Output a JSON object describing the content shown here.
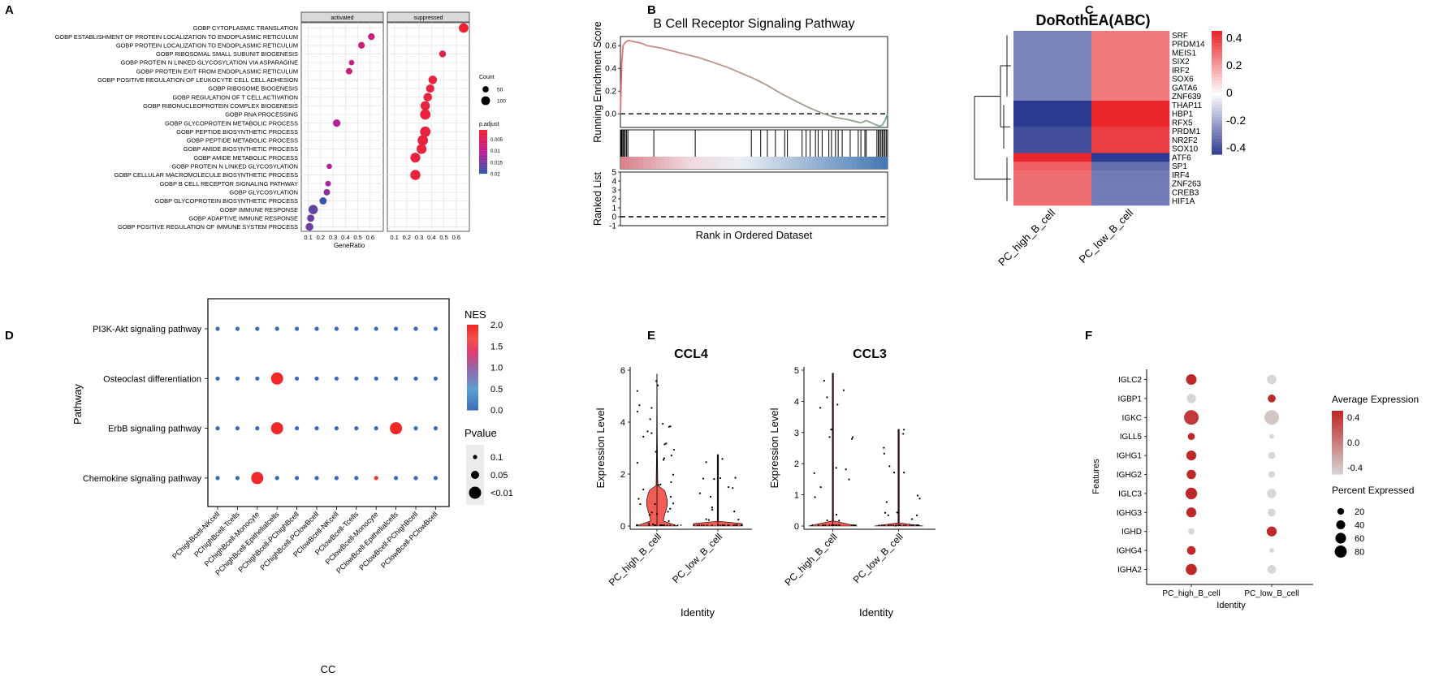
{
  "panels": {
    "A": "A",
    "B": "B",
    "C": "C",
    "D": "D",
    "E": "E",
    "F": "F"
  },
  "chart_data": [
    {
      "panel": "A",
      "type": "scatter",
      "facets": [
        "activated",
        "suppressed"
      ],
      "xlabel": "GeneRatio",
      "ylabel": "",
      "xticks": [
        0.1,
        0.2,
        0.3,
        0.4,
        0.5,
        0.6
      ],
      "xlim": [
        0.07,
        0.68
      ],
      "terms": [
        "GOBP CYTOPLASMIC TRANSLATION",
        "GOBP ESTABLISHMENT OF PROTEIN LOCALIZATION TO ENDOPLASMIC RETICULUM",
        "GOBP PROTEIN LOCALIZATION TO ENDOPLASMIC RETICULUM",
        "GOBP RIBOSOMAL SMALL SUBUNIT BIOGENESIS",
        "GOBP PROTEIN N LINKED GLYCOSYLATION VIA ASPARAGINE",
        "GOBP PROTEIN EXIT FROM ENDOPLASMIC RETICULUM",
        "GOBP POSITIVE REGULATION OF LEUKOCYTE CELL CELL ADHESION",
        "GOBP RIBOSOME BIOGENESIS",
        "GOBP REGULATION OF T CELL ACTIVATION",
        "GOBP RIBONUCLEOPROTEIN COMPLEX BIOGENESIS",
        "GOBP RNA PROCESSING",
        "GOBP GLYCOPROTEIN METABOLIC PROCESS",
        "GOBP PEPTIDE BIOSYNTHETIC PROCESS",
        "GOBP PEPTIDE METABOLIC PROCESS",
        "GOBP AMIDE BIOSYNTHETIC PROCESS",
        "GOBP AMIDE METABOLIC PROCESS",
        "GOBP PROTEIN N LINKED GLYCOSYLATION",
        "GOBP CELLULAR MACROMOLECULE BIOSYNTHETIC PROCESS",
        "GOBP B CELL RECEPTOR SIGNALING PATHWAY",
        "GOBP GLYCOSYLATION",
        "GOBP GLYCOPROTEIN BIOSYNTHETIC PROCESS",
        "GOBP IMMUNE RESPONSE",
        "GOBP ADAPTIVE IMMUNE RESPONSE",
        "GOBP POSITIVE REGULATION OF IMMUNE SYSTEM PROCESS"
      ],
      "points": [
        {
          "term": 0,
          "facet": 1,
          "x": 0.66,
          "count": 115,
          "padj": 0.001
        },
        {
          "term": 1,
          "facet": 0,
          "x": 0.61,
          "count": 60,
          "padj": 0.008
        },
        {
          "term": 2,
          "facet": 0,
          "x": 0.53,
          "count": 60,
          "padj": 0.007
        },
        {
          "term": 3,
          "facet": 1,
          "x": 0.49,
          "count": 60,
          "padj": 0.003
        },
        {
          "term": 4,
          "facet": 0,
          "x": 0.45,
          "count": 35,
          "padj": 0.009
        },
        {
          "term": 5,
          "facet": 0,
          "x": 0.43,
          "count": 55,
          "padj": 0.008
        },
        {
          "term": 6,
          "facet": 1,
          "x": 0.41,
          "count": 95,
          "padj": 0.002
        },
        {
          "term": 7,
          "facet": 1,
          "x": 0.39,
          "count": 90,
          "padj": 0.002
        },
        {
          "term": 8,
          "facet": 1,
          "x": 0.37,
          "count": 95,
          "padj": 0.002
        },
        {
          "term": 9,
          "facet": 1,
          "x": 0.35,
          "count": 110,
          "padj": 0.002
        },
        {
          "term": 10,
          "facet": 1,
          "x": 0.35,
          "count": 130,
          "padj": 0.002
        },
        {
          "term": 11,
          "facet": 0,
          "x": 0.33,
          "count": 75,
          "padj": 0.011
        },
        {
          "term": 12,
          "facet": 1,
          "x": 0.35,
          "count": 130,
          "padj": 0.002
        },
        {
          "term": 13,
          "facet": 1,
          "x": 0.33,
          "count": 130,
          "padj": 0.002
        },
        {
          "term": 14,
          "facet": 1,
          "x": 0.32,
          "count": 120,
          "padj": 0.002
        },
        {
          "term": 15,
          "facet": 1,
          "x": 0.27,
          "count": 120,
          "padj": 0.002
        },
        {
          "term": 16,
          "facet": 0,
          "x": 0.27,
          "count": 35,
          "padj": 0.011
        },
        {
          "term": 17,
          "facet": 1,
          "x": 0.27,
          "count": 125,
          "padj": 0.002
        },
        {
          "term": 18,
          "facet": 0,
          "x": 0.26,
          "count": 40,
          "padj": 0.012
        },
        {
          "term": 19,
          "facet": 0,
          "x": 0.25,
          "count": 55,
          "padj": 0.014
        },
        {
          "term": 20,
          "facet": 0,
          "x": 0.22,
          "count": 70,
          "padj": 0.02
        },
        {
          "term": 21,
          "facet": 0,
          "x": 0.14,
          "count": 110,
          "padj": 0.017
        },
        {
          "term": 22,
          "facet": 0,
          "x": 0.12,
          "count": 70,
          "padj": 0.016
        },
        {
          "term": 23,
          "facet": 0,
          "x": 0.11,
          "count": 80,
          "padj": 0.016
        }
      ],
      "size_legend": {
        "title": "Count",
        "values": [
          50,
          100
        ]
      },
      "color_legend": {
        "title": "p.adjust",
        "ticks": [
          0.005,
          0.01,
          0.015,
          0.02
        ],
        "low": "#ee2233",
        "high": "#3355aa"
      }
    },
    {
      "panel": "B",
      "type": "line",
      "title": "B Cell Receptor Signaling Pathway",
      "ylabel": "Running Enrichment Score",
      "yticks": [
        0.0,
        0.2,
        0.4,
        0.6
      ],
      "ylim": [
        -0.12,
        0.68
      ],
      "es_curve": {
        "x": [
          0,
          0.5,
          1,
          1.5,
          2,
          2.5,
          3,
          4,
          6,
          8,
          10,
          15,
          20,
          25,
          30,
          35,
          40,
          45,
          50,
          55,
          60,
          65,
          70,
          75,
          80,
          85,
          90,
          92,
          95,
          97,
          98,
          99,
          100
        ],
        "y": [
          0.0,
          0.45,
          0.6,
          0.62,
          0.63,
          0.64,
          0.645,
          0.64,
          0.63,
          0.62,
          0.6,
          0.58,
          0.55,
          0.52,
          0.49,
          0.45,
          0.41,
          0.36,
          0.31,
          0.25,
          0.18,
          0.12,
          0.06,
          0.01,
          -0.03,
          -0.05,
          -0.08,
          -0.06,
          -0.09,
          -0.11,
          -0.1,
          -0.06,
          0.0
        ]
      },
      "hits": [
        0.3,
        0.6,
        1.0,
        1.4,
        1.8,
        2.3,
        2.8,
        12.5,
        28,
        49,
        52.5,
        55,
        58,
        61.5,
        62.5,
        68,
        69.5,
        71,
        73,
        74,
        75.5,
        78,
        79,
        80.5,
        81.5,
        83,
        86,
        89,
        90,
        91.5,
        92,
        96,
        96.5,
        97,
        97.5,
        98,
        98.5,
        99,
        99.5,
        100
      ],
      "ranked_list": {
        "ylabel": "Ranked List",
        "yticks": [
          -1,
          0,
          1,
          2,
          3,
          4,
          5
        ],
        "ylim": [
          -1,
          5
        ]
      },
      "xlabel": "Rank in Ordered Dataset"
    },
    {
      "panel": "C",
      "type": "heatmap",
      "title": "DoRothEA(ABC)",
      "rows": [
        "SRF",
        "PRDM14",
        "MEIS1",
        "SIX2",
        "IRF2",
        "SOX6",
        "GATA6",
        "ZNF639",
        "THAP11",
        "HBP1",
        "RFX5",
        "PRDM1",
        "NR2F2",
        "SOX10",
        "ATF6",
        "SP1",
        "IRF4",
        "ZNF263",
        "CREB3",
        "HIF1A"
      ],
      "columns": [
        "PC_high_B_cell",
        "PC_low_B_cell"
      ],
      "values": [
        [
          -0.28,
          0.28
        ],
        [
          -0.28,
          0.28
        ],
        [
          -0.28,
          0.28
        ],
        [
          -0.28,
          0.28
        ],
        [
          -0.28,
          0.28
        ],
        [
          -0.28,
          0.28
        ],
        [
          -0.28,
          0.28
        ],
        [
          -0.28,
          0.28
        ],
        [
          -0.45,
          0.45
        ],
        [
          -0.45,
          0.45
        ],
        [
          -0.45,
          0.45
        ],
        [
          -0.4,
          0.4
        ],
        [
          -0.4,
          0.4
        ],
        [
          -0.4,
          0.4
        ],
        [
          0.45,
          -0.45
        ],
        [
          0.33,
          -0.33
        ],
        [
          0.3,
          -0.3
        ],
        [
          0.3,
          -0.3
        ],
        [
          0.3,
          -0.3
        ],
        [
          0.3,
          -0.3
        ]
      ],
      "color_scale": {
        "ticks": [
          0.4,
          0.2,
          0,
          -0.2,
          -0.4
        ],
        "tick_labels": [
          "0.4",
          "0.2",
          "0",
          "-0.2",
          "-0.4"
        ],
        "low": "#2b3990",
        "mid": "#ffffff",
        "high": "#e8262c"
      }
    },
    {
      "panel": "D",
      "type": "scatter",
      "ylabel": "Pathway",
      "xlabel": "CC",
      "pathways": [
        "PI3K-Akt signaling pathway",
        "Osteoclast differentiation",
        "ErbB signaling pathway",
        "Chemokine signaling pathway"
      ],
      "comparisons": [
        "PChighBcell-NKcell",
        "PChighBcell-Tcells",
        "PChighBcell-Monocyte",
        "PChighBcell-Epithelialcells",
        "PChighBcell-PChighBcell",
        "PChighBcell-PClowBcell",
        "PClowBcell-NKcell",
        "PClowBcell-Tcells",
        "PClowBcell-Monocyte",
        "PClowBcell-Epithelialcells",
        "PClowBcell-PChighBcell",
        "PClowBcell-PClowBcell"
      ],
      "big_points": [
        {
          "pathway": 1,
          "comparison": 3,
          "nes": 2.0,
          "pvalue": "<0.01"
        },
        {
          "pathway": 2,
          "comparison": 3,
          "nes": 2.0,
          "pvalue": "<0.01"
        },
        {
          "pathway": 2,
          "comparison": 9,
          "nes": 2.0,
          "pvalue": "<0.01"
        },
        {
          "pathway": 3,
          "comparison": 2,
          "nes": 2.0,
          "pvalue": "<0.01"
        },
        {
          "pathway": 3,
          "comparison": 8,
          "nes": 1.9,
          "pvalue": "0.1"
        }
      ],
      "default_point": {
        "nes": 0.0,
        "pvalue": "0.1"
      },
      "nes_legend": {
        "title": "NES",
        "ticks": [
          2.0,
          1.5,
          1.0,
          0.5,
          0.0
        ],
        "tick_labels": [
          "2.0",
          "1.5",
          "1.0",
          "0.5",
          "0.0"
        ]
      },
      "pvalue_legend": {
        "title": "Pvalue",
        "labels": [
          "0.1",
          "0.05",
          "<0.01"
        ]
      }
    },
    {
      "panel": "E",
      "type": "violin",
      "plots": [
        {
          "title": "CCL4",
          "ylabel": "Expression Level",
          "xlabel": "Identity",
          "groups": [
            "PC_high_B_cell",
            "PC_low_B_cell"
          ],
          "ylim": [
            0,
            6
          ],
          "yticks": [
            0,
            2,
            4,
            6
          ],
          "max": [
            5.85,
            2.75
          ]
        },
        {
          "title": "CCL3",
          "ylabel": "Expression Level",
          "xlabel": "Identity",
          "groups": [
            "PC_high_B_cell",
            "PC_low_B_cell"
          ],
          "ylim": [
            0,
            5
          ],
          "yticks": [
            0,
            1,
            2,
            3,
            4,
            5
          ],
          "max": [
            4.9,
            3.1
          ]
        }
      ]
    },
    {
      "panel": "F",
      "type": "scatter",
      "ylabel": "Features",
      "xlabel": "Identity",
      "genes": [
        "IGLC2",
        "IGBP1",
        "IGKC",
        "IGLL5",
        "IGHG1",
        "IGHG2",
        "IGLC3",
        "IGHG3",
        "IGHD",
        "IGHG4",
        "IGHA2"
      ],
      "groups": [
        "PC_high_B_cell",
        "PC_low_B_cell"
      ],
      "avg_expression": [
        [
          0.5,
          -0.5
        ],
        [
          -0.5,
          0.5
        ],
        [
          0.4,
          -0.4
        ],
        [
          0.5,
          -0.5
        ],
        [
          0.5,
          -0.5
        ],
        [
          0.5,
          -0.5
        ],
        [
          0.5,
          -0.5
        ],
        [
          0.5,
          -0.5
        ],
        [
          -0.5,
          0.5
        ],
        [
          0.5,
          -0.5
        ],
        [
          0.5,
          -0.5
        ]
      ],
      "pct_expressed": [
        [
          40,
          30
        ],
        [
          30,
          20
        ],
        [
          85,
          85
        ],
        [
          15,
          5
        ],
        [
          35,
          15
        ],
        [
          30,
          12
        ],
        [
          50,
          30
        ],
        [
          35,
          20
        ],
        [
          12,
          35
        ],
        [
          25,
          5
        ],
        [
          45,
          25
        ]
      ],
      "color_legend": {
        "title": "Average Expression",
        "ticks": [
          0.4,
          0.0,
          -0.4
        ],
        "tick_labels": [
          "0.4",
          "0.0",
          "-0.4"
        ]
      },
      "size_legend": {
        "title": "Percent Expressed",
        "values": [
          20,
          40,
          60,
          80
        ]
      }
    }
  ]
}
